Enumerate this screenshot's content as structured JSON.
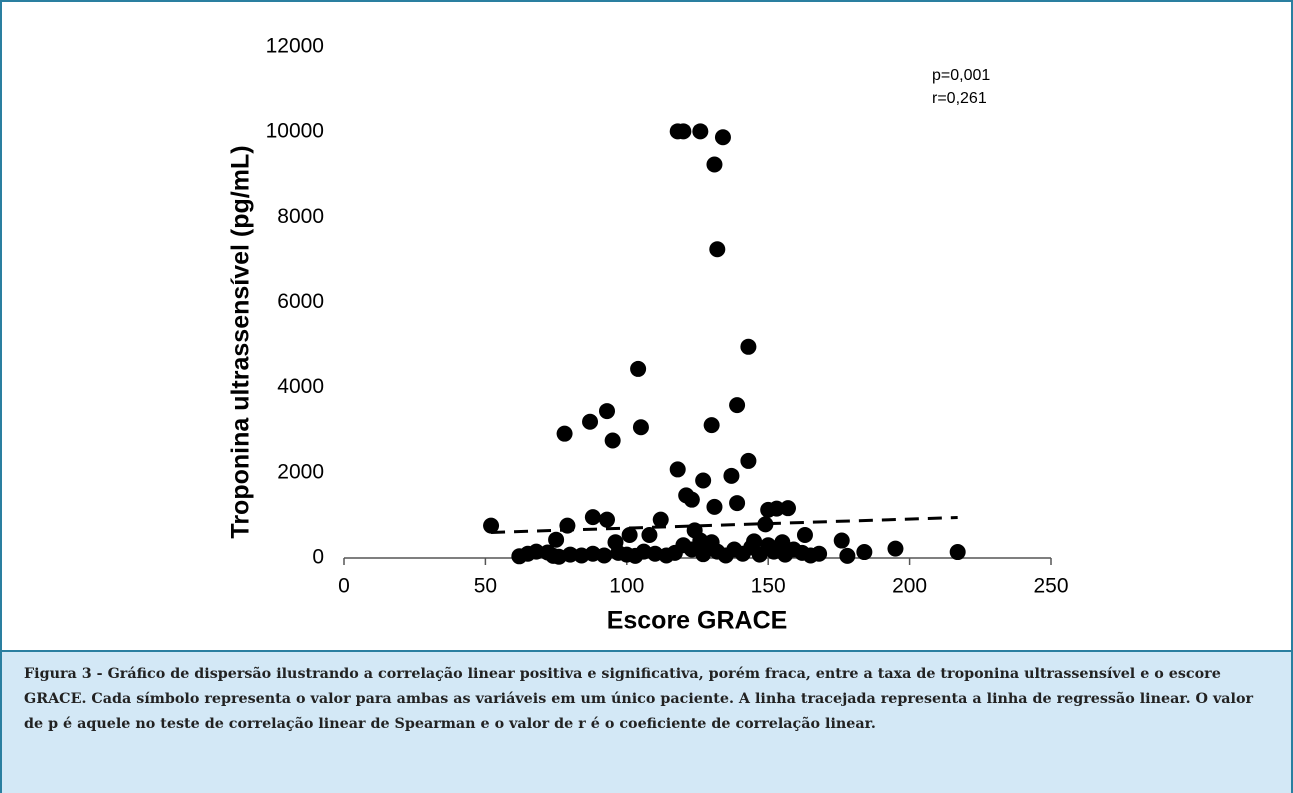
{
  "chart_data": {
    "type": "scatter",
    "x_label": "Escore GRACE",
    "y_label": "Troponina ultrassensível (pg/mL)",
    "annotations": [
      "p=0,001",
      "r=0,261"
    ],
    "color": "#000000",
    "x": [
      118,
      120,
      126,
      134,
      131,
      132,
      104,
      143,
      139,
      93,
      87,
      78,
      95,
      105,
      130,
      118,
      143,
      137,
      127,
      121,
      123,
      131,
      139,
      150,
      153,
      157,
      149,
      52,
      79,
      88,
      93,
      112,
      101,
      108,
      124,
      163,
      176,
      75,
      96,
      126,
      130,
      145,
      155,
      62,
      65,
      68,
      72,
      74,
      76,
      80,
      84,
      88,
      92,
      97,
      100,
      103,
      106,
      110,
      114,
      117,
      120,
      123,
      127,
      132,
      135,
      138,
      141,
      144,
      147,
      150,
      152,
      156,
      159,
      162,
      165,
      168,
      178,
      184,
      195,
      217
    ],
    "values": [
      10020,
      10020,
      10020,
      9880,
      9240,
      7250,
      4440,
      4960,
      3590,
      3450,
      3200,
      2920,
      2760,
      3070,
      3120,
      2080,
      2280,
      1930,
      1820,
      1470,
      1370,
      1200,
      1290,
      1130,
      1160,
      1170,
      790,
      760,
      760,
      960,
      900,
      900,
      540,
      540,
      650,
      540,
      410,
      430,
      370,
      410,
      370,
      390,
      370,
      40,
      100,
      150,
      130,
      50,
      30,
      80,
      60,
      100,
      60,
      120,
      80,
      50,
      150,
      100,
      60,
      120,
      300,
      200,
      90,
      150,
      60,
      200,
      100,
      250,
      80,
      300,
      150,
      80,
      200,
      120,
      60,
      100,
      50,
      140,
      220,
      140
    ],
    "trendline": {
      "x": [
        52,
        217
      ],
      "y": [
        600,
        950
      ]
    },
    "xlim": [
      0,
      250
    ],
    "xticks": [
      0,
      50,
      100,
      150,
      200,
      250
    ],
    "ylim": [
      0,
      12000
    ],
    "yticks": [
      0,
      2000,
      4000,
      6000,
      8000,
      10000,
      12000
    ]
  },
  "caption": "Figura 3 - Gráfico de dispersão ilustrando a correlação linear positiva e significativa, porém fraca, entre a taxa de troponina ultrassensível e o escore GRACE. Cada símbolo representa o valor para ambas as variáveis em um único paciente. A linha tracejada representa a linha de regressão linear. O valor de p é aquele no teste de correlação linear de Spearman e o valor de r é o coeficiente de correlação linear."
}
